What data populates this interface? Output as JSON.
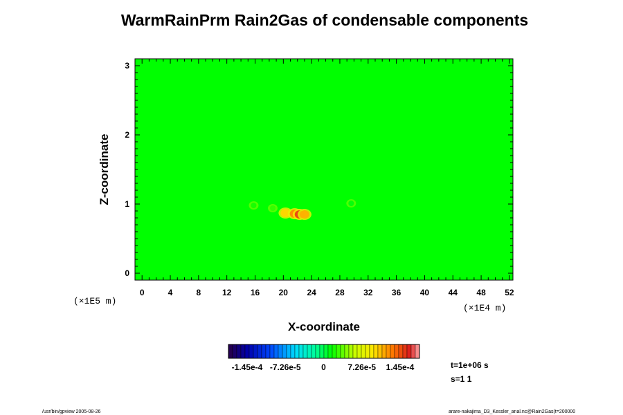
{
  "chart_data": {
    "type": "heatmap",
    "title": "WarmRainPrm Rain2Gas of condensable components",
    "xlabel": "X-coordinate",
    "ylabel": "Z-coordinate",
    "x_scale_label": "(×1E4 m)",
    "y_scale_label": "(×1E5 m)",
    "x_range": [
      -1,
      52.5
    ],
    "y_range": [
      -0.1,
      3.1
    ],
    "x_ticks": [
      "0",
      "4",
      "8",
      "12",
      "16",
      "20",
      "24",
      "28",
      "32",
      "36",
      "40",
      "44",
      "48",
      "52"
    ],
    "y_ticks": [
      "0",
      "1",
      "2",
      "3"
    ],
    "background_value": 0,
    "background_color": "#00ff00",
    "features": [
      {
        "x": 15.8,
        "z": 0.98,
        "value": 1.5e-05
      },
      {
        "x": 18.5,
        "z": 0.94,
        "value": 2e-05
      },
      {
        "x": 20.3,
        "z": 0.87,
        "value": 8e-05
      },
      {
        "x": 21.6,
        "z": 0.86,
        "value": 0.0001
      },
      {
        "x": 22.3,
        "z": 0.85,
        "value": 0.00012
      },
      {
        "x": 23.0,
        "z": 0.85,
        "value": 9e-05
      },
      {
        "x": 29.6,
        "z": 1.01,
        "value": 1e-05
      }
    ],
    "colorbar": {
      "min": -0.000145,
      "max": 0.000145,
      "labels": [
        "-1.45e-4",
        "-7.26e-5",
        "0",
        "7.26e-5",
        "1.45e-4"
      ]
    }
  },
  "info": {
    "time": "t=1e+06 s",
    "step": "s=1 1",
    "footer_left": "/usr/bin/gpview 2005-08-26",
    "footer_right": "arare-nakajima_D3_Kessler_anal.nc@Rain2Gas(t=200000"
  }
}
